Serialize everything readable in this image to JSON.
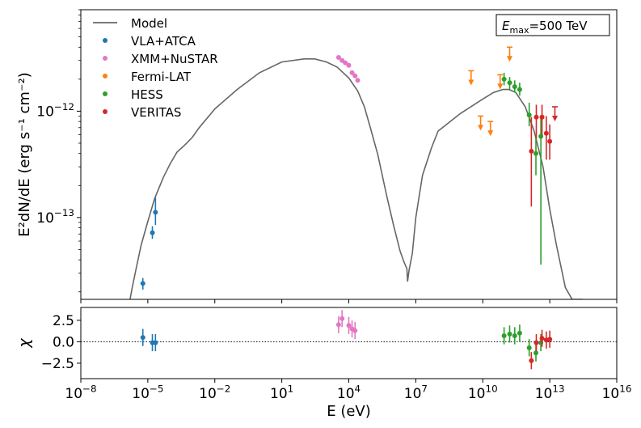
{
  "chart_data": [
    {
      "type": "line",
      "title": "",
      "xlabel": "E (eV)",
      "ylabel": "E²dN/dE (erg s⁻¹ cm⁻²)",
      "xscale": "log",
      "yscale": "log",
      "xlim": [
        1e-08,
        1e+16
      ],
      "ylim": [
        1.7e-14,
        9e-12
      ],
      "x_tick_labels": [
        {
          "base": "10",
          "exp": "−8",
          "value": 1e-08
        },
        {
          "base": "10",
          "exp": "−5",
          "value": 1e-05
        },
        {
          "base": "10",
          "exp": "−2",
          "value": 0.01
        },
        {
          "base": "10",
          "exp": "1",
          "value": 10.0
        },
        {
          "base": "10",
          "exp": "4",
          "value": 10000.0
        },
        {
          "base": "10",
          "exp": "7",
          "value": 10000000.0
        },
        {
          "base": "10",
          "exp": "10",
          "value": 10000000000.0
        },
        {
          "base": "10",
          "exp": "13",
          "value": 10000000000000.0
        },
        {
          "base": "10",
          "exp": "16",
          "value": 1e+16
        }
      ],
      "y_tick_labels": [
        {
          "base": "10",
          "exp": "−12",
          "value": 1e-12
        },
        {
          "base": "10",
          "exp": "−13",
          "value": 1e-13
        }
      ],
      "annotation": {
        "prefix": "E",
        "subscript": "max",
        "suffix": "=500 TeV"
      },
      "legend_placement": "top-left",
      "legend": [
        {
          "label": "Model",
          "kind": "line"
        },
        {
          "label": "VLA+ATCA",
          "kind": "marker"
        },
        {
          "label": "XMM+NuSTAR",
          "kind": "marker"
        },
        {
          "label": "Fermi-LAT",
          "kind": "marker"
        },
        {
          "label": "HESS",
          "kind": "marker"
        },
        {
          "label": "VERITAS",
          "kind": "marker"
        }
      ],
      "colors": {
        "Model": "#666666",
        "VLA+ATCA": "#1f77b4",
        "XMM+NuSTAR": "#e377c2",
        "Fermi-LAT": "#ff7f0e",
        "HESS": "#2ca02c",
        "VERITAS": "#d62728"
      },
      "model_curve": {
        "name": "Model",
        "x": [
          1.6e-06,
          2e-06,
          3e-06,
          5e-06,
          1e-05,
          2e-05,
          5e-05,
          0.0001,
          0.0002,
          0.0005,
          0.001,
          0.002,
          0.01,
          0.1,
          1,
          10,
          100,
          300,
          1000,
          3000,
          10000.0,
          25000.0,
          50000.0,
          100000.0,
          200000.0,
          500000.0,
          1000000.0,
          2000000.0,
          3000000.0,
          4000000.0,
          4300000.0,
          5000000.0,
          7000000.0,
          10000000.0,
          20000000.0,
          50000000.0,
          100000000.0,
          1000000000.0,
          10000000000.0,
          30000000000.0,
          80000000000.0,
          150000000000.0,
          300000000000.0,
          800000000000.0,
          2000000000000.0,
          5000000000000.0,
          10000000000000.0,
          20000000000000.0,
          50000000000000.0,
          100000000000000.0,
          200000000000000.0,
          300000000000000.0
        ],
        "y": [
          1.7e-14,
          2.2e-14,
          3.3e-14,
          5.5e-14,
          9.2e-14,
          1.5e-13,
          2.4e-13,
          3.2e-13,
          4.1e-13,
          4.9e-13,
          5.7e-13,
          7e-13,
          1.05e-12,
          1.6e-12,
          2.3e-12,
          2.9e-12,
          3.1e-12,
          3.1e-12,
          2.9e-12,
          2.6e-12,
          2.05e-12,
          1.55e-12,
          1.1e-12,
          6.6e-13,
          3.9e-13,
          1.6e-13,
          8.5e-14,
          4.8e-14,
          3.8e-14,
          3.3e-14,
          2.5e-14,
          3.2e-14,
          4.6e-14,
          1e-13,
          2.5e-13,
          4.5e-13,
          6.5e-13,
          9.5e-13,
          1.3e-12,
          1.5e-12,
          1.6e-12,
          1.6e-12,
          1.5e-12,
          1.1e-12,
          6.5e-13,
          3e-13,
          1.2e-13,
          5.5e-14,
          2.2e-14,
          1.7e-14,
          1.7e-14,
          1.7e-14
        ]
      },
      "series": [
        {
          "name": "VLA+ATCA",
          "points": [
            {
              "x": 6e-06,
              "y": 2.4e-14,
              "ylo": 2.1e-14,
              "yhi": 2.7e-14
            },
            {
              "x": 1.6e-05,
              "y": 7.2e-14,
              "ylo": 6.3e-14,
              "yhi": 8.3e-14
            },
            {
              "x": 2.2e-05,
              "y": 1.12e-13,
              "ylo": 8.5e-14,
              "yhi": 1.55e-13
            }
          ]
        },
        {
          "name": "XMM+NuSTAR",
          "points": [
            {
              "x": 3500.0,
              "y": 3.2e-12,
              "ylo": 3.1e-12,
              "yhi": 3.35e-12
            },
            {
              "x": 5000.0,
              "y": 3e-12,
              "ylo": 2.9e-12,
              "yhi": 3.1e-12
            },
            {
              "x": 7000.0,
              "y": 2.85e-12,
              "ylo": 2.75e-12,
              "yhi": 2.95e-12
            },
            {
              "x": 10000.0,
              "y": 2.7e-12,
              "ylo": 2.6e-12,
              "yhi": 2.8e-12
            },
            {
              "x": 14000.0,
              "y": 2.3e-12,
              "ylo": 2.2e-12,
              "yhi": 2.4e-12
            },
            {
              "x": 19000.0,
              "y": 2.15e-12,
              "ylo": 2.05e-12,
              "yhi": 2.25e-12
            },
            {
              "x": 25000.0,
              "y": 1.95e-12,
              "ylo": 1.85e-12,
              "yhi": 2.05e-12
            }
          ]
        },
        {
          "name": "Fermi-LAT",
          "points": [
            {
              "x": 3000000000.0,
              "y": 2.4e-12,
              "upper_limit": true
            },
            {
              "x": 8000000000.0,
              "y": 9e-13,
              "upper_limit": true
            },
            {
              "x": 22000000000.0,
              "y": 8e-13,
              "upper_limit": true
            },
            {
              "x": 60000000000.0,
              "y": 2.2e-12,
              "upper_limit": true
            },
            {
              "x": 160000000000.0,
              "y": 4e-12,
              "upper_limit": true
            }
          ]
        },
        {
          "name": "HESS",
          "points": [
            {
              "x": 90000000000.0,
              "y": 2e-12,
              "ylo": 1.75e-12,
              "yhi": 2.3e-12
            },
            {
              "x": 160000000000.0,
              "y": 1.85e-12,
              "ylo": 1.6e-12,
              "yhi": 2.1e-12
            },
            {
              "x": 270000000000.0,
              "y": 1.7e-12,
              "ylo": 1.5e-12,
              "yhi": 1.95e-12
            },
            {
              "x": 450000000000.0,
              "y": 1.6e-12,
              "ylo": 1.4e-12,
              "yhi": 1.85e-12
            },
            {
              "x": 1200000000000.0,
              "y": 9.2e-13,
              "ylo": 7.2e-13,
              "yhi": 1.2e-12
            },
            {
              "x": 2400000000000.0,
              "y": 4e-13,
              "ylo": 2.5e-13,
              "yhi": 5.8e-13
            },
            {
              "x": 4000000000000.0,
              "y": 5.8e-13,
              "ylo": 3.6e-14,
              "yhi": 8.8e-13
            }
          ]
        },
        {
          "name": "VERITAS",
          "points": [
            {
              "x": 1500000000000.0,
              "y": 4.2e-13,
              "ylo": 1.27e-13,
              "yhi": 8.8e-13
            },
            {
              "x": 2500000000000.0,
              "y": 8.8e-13,
              "ylo": 5.5e-13,
              "yhi": 1.15e-12
            },
            {
              "x": 4500000000000.0,
              "y": 8.8e-13,
              "ylo": 6e-13,
              "yhi": 1.15e-12
            },
            {
              "x": 7000000000000.0,
              "y": 6.2e-13,
              "ylo": 3.5e-13,
              "yhi": 9e-13
            },
            {
              "x": 10000000000000.0,
              "y": 5.2e-13,
              "ylo": 3.5e-13,
              "yhi": 7.5e-13
            },
            {
              "x": 17000000000000.0,
              "y": 1.1e-12,
              "upper_limit": true
            }
          ]
        }
      ]
    },
    {
      "type": "scatter",
      "title": "",
      "xlabel": "E (eV)",
      "ylabel": "χ",
      "xscale": "log",
      "xlim": [
        1e-08,
        1e+16
      ],
      "ylim": [
        -4.3,
        4.0
      ],
      "y_tick_labels": [
        "2.5",
        "0.0",
        "−2.5"
      ],
      "y_tick_values": [
        2.5,
        0.0,
        -2.5
      ],
      "reference_line": {
        "y": 0,
        "style": "dotted"
      },
      "series": [
        {
          "name": "VLA+ATCA",
          "points": [
            {
              "x": 6e-06,
              "y": 0.5,
              "ylo": -0.5,
              "yhi": 1.5
            },
            {
              "x": 1.6e-05,
              "y": -0.1,
              "ylo": -1.1,
              "yhi": 0.9
            },
            {
              "x": 2.2e-05,
              "y": -0.1,
              "ylo": -1.1,
              "yhi": 0.9
            }
          ]
        },
        {
          "name": "XMM+NuSTAR",
          "points": [
            {
              "x": 3500.0,
              "y": 2.0,
              "ylo": 1.0,
              "yhi": 3.0
            },
            {
              "x": 5000.0,
              "y": 2.7,
              "ylo": 1.7,
              "yhi": 3.7
            },
            {
              "x": 10000.0,
              "y": 1.9,
              "ylo": 0.9,
              "yhi": 2.9
            },
            {
              "x": 14000.0,
              "y": 1.5,
              "ylo": 0.5,
              "yhi": 2.5
            },
            {
              "x": 19000.0,
              "y": 1.3,
              "ylo": 0.3,
              "yhi": 2.3
            }
          ]
        },
        {
          "name": "HESS",
          "points": [
            {
              "x": 90000000000.0,
              "y": 0.7,
              "ylo": -0.3,
              "yhi": 1.7
            },
            {
              "x": 160000000000.0,
              "y": 0.9,
              "ylo": -0.1,
              "yhi": 1.9
            },
            {
              "x": 270000000000.0,
              "y": 0.7,
              "ylo": -0.3,
              "yhi": 1.7
            },
            {
              "x": 450000000000.0,
              "y": 1.0,
              "ylo": 0.0,
              "yhi": 2.0
            },
            {
              "x": 1200000000000.0,
              "y": -0.7,
              "ylo": -1.7,
              "yhi": 0.3
            },
            {
              "x": 2400000000000.0,
              "y": -1.3,
              "ylo": -2.3,
              "yhi": -0.3
            },
            {
              "x": 4000000000000.0,
              "y": -0.1,
              "ylo": -1.1,
              "yhi": 0.9
            }
          ]
        },
        {
          "name": "VERITAS",
          "points": [
            {
              "x": 1500000000000.0,
              "y": -2.2,
              "ylo": -3.2,
              "yhi": -1.2
            },
            {
              "x": 2500000000000.0,
              "y": -0.1,
              "ylo": -1.1,
              "yhi": 0.9
            },
            {
              "x": 4500000000000.0,
              "y": 0.4,
              "ylo": -0.6,
              "yhi": 1.4
            },
            {
              "x": 7000000000000.0,
              "y": 0.2,
              "ylo": -0.8,
              "yhi": 1.2
            },
            {
              "x": 10000000000000.0,
              "y": 0.3,
              "ylo": -0.7,
              "yhi": 1.3
            }
          ]
        }
      ]
    }
  ]
}
